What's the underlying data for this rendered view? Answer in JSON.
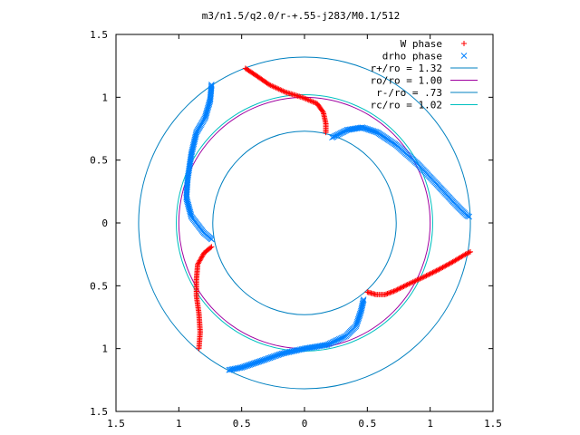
{
  "chart_data": {
    "type": "scatter",
    "title": "m3/n1.5/q2.0/r-+.55-j283/M0.1/512",
    "xlabel": "",
    "ylabel": "",
    "xlim": [
      -1.5,
      1.5
    ],
    "ylim": [
      -1.5,
      1.5
    ],
    "x_tick_values": [
      -1.5,
      -1,
      -0.5,
      0,
      0.5,
      1,
      1.5
    ],
    "x_tick_labels": [
      "1.5",
      "1",
      "0.5",
      "0",
      "0.5",
      "1",
      "1.5"
    ],
    "y_tick_values": [
      1.5,
      1,
      0.5,
      0,
      -0.5,
      -1,
      -1.5
    ],
    "y_tick_labels": [
      "1.5",
      "1",
      "0.5",
      "0",
      "0.5",
      "1",
      "1.5"
    ],
    "grid": false,
    "legend_position": "top-right",
    "series": [
      {
        "name": "W phase",
        "marker": "+",
        "color": "#ff0000",
        "arms": [
          [
            [
              -0.47,
              1.23
            ],
            [
              -0.38,
              1.17
            ],
            [
              -0.28,
              1.1
            ],
            [
              -0.15,
              1.04
            ],
            [
              -0.02,
              1.0
            ],
            [
              0.1,
              0.95
            ],
            [
              0.15,
              0.88
            ],
            [
              0.17,
              0.79
            ],
            [
              0.17,
              0.72
            ]
          ],
          [
            [
              0.5,
              -0.55
            ],
            [
              0.57,
              -0.57
            ],
            [
              0.64,
              -0.57
            ],
            [
              0.72,
              -0.54
            ],
            [
              0.82,
              -0.49
            ],
            [
              0.95,
              -0.43
            ],
            [
              1.07,
              -0.37
            ],
            [
              1.18,
              -0.31
            ],
            [
              1.28,
              -0.25
            ],
            [
              1.32,
              -0.23
            ]
          ],
          [
            [
              -0.74,
              -0.19
            ],
            [
              -0.8,
              -0.24
            ],
            [
              -0.85,
              -0.33
            ],
            [
              -0.86,
              -0.45
            ],
            [
              -0.86,
              -0.58
            ],
            [
              -0.84,
              -0.72
            ],
            [
              -0.83,
              -0.87
            ],
            [
              -0.84,
              -1.0
            ]
          ]
        ]
      },
      {
        "name": "drho phase",
        "marker": "x",
        "color": "#0080ff",
        "arms": [
          [
            [
              -0.74,
              1.1
            ],
            [
              -0.75,
              0.98
            ],
            [
              -0.79,
              0.84
            ],
            [
              -0.86,
              0.72
            ],
            [
              -0.9,
              0.55
            ],
            [
              -0.93,
              0.35
            ],
            [
              -0.94,
              0.2
            ],
            [
              -0.9,
              0.05
            ],
            [
              -0.8,
              -0.08
            ],
            [
              -0.74,
              -0.13
            ]
          ],
          [
            [
              0.22,
              0.68
            ],
            [
              0.34,
              0.74
            ],
            [
              0.46,
              0.76
            ],
            [
              0.58,
              0.72
            ],
            [
              0.73,
              0.62
            ],
            [
              0.9,
              0.47
            ],
            [
              1.06,
              0.3
            ],
            [
              1.2,
              0.15
            ],
            [
              1.29,
              0.06
            ],
            [
              1.31,
              0.05
            ]
          ],
          [
            [
              0.47,
              -0.61
            ],
            [
              0.45,
              -0.7
            ],
            [
              0.41,
              -0.82
            ],
            [
              0.33,
              -0.9
            ],
            [
              0.18,
              -0.97
            ],
            [
              0.0,
              -1.0
            ],
            [
              -0.18,
              -1.04
            ],
            [
              -0.35,
              -1.1
            ],
            [
              -0.5,
              -1.15
            ],
            [
              -0.6,
              -1.17
            ]
          ]
        ]
      }
    ],
    "circles": [
      {
        "label": "r+/ro = 1.32",
        "radius": 1.32,
        "color": "#0080c0"
      },
      {
        "label": "ro/ro = 1.00",
        "radius": 1.0,
        "color": "#a000a0"
      },
      {
        "label": "r-/ro = .73",
        "radius": 0.73,
        "color": "#0080c0"
      },
      {
        "label": "rc/ro = 1.02",
        "radius": 1.02,
        "color": "#00c0c0"
      }
    ]
  }
}
